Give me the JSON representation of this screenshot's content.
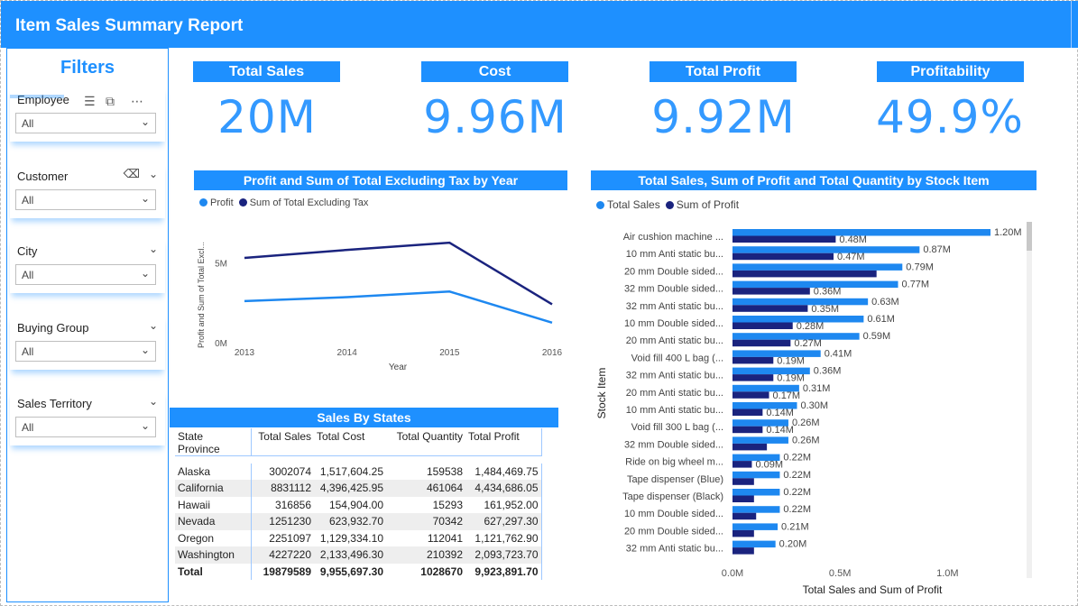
{
  "header": {
    "title": "Item Sales Summary Report"
  },
  "filters": {
    "title": "Filters",
    "slicers": [
      {
        "label": "Employee",
        "value": "All"
      },
      {
        "label": "Customer",
        "value": "All"
      },
      {
        "label": "City",
        "value": "All"
      },
      {
        "label": "Buying Group",
        "value": "All"
      },
      {
        "label": "Sales Territory",
        "value": "All"
      }
    ]
  },
  "kpis": [
    {
      "label": "Total Sales",
      "value": "20M"
    },
    {
      "label": "Cost",
      "value": "9.96M"
    },
    {
      "label": "Total Profit",
      "value": "9.92M"
    },
    {
      "label": "Profitability",
      "value": "49.9%"
    }
  ],
  "colors": {
    "accent": "#1e90ff",
    "series_light": "#1e88f0",
    "series_dark": "#1a237e"
  },
  "line_chart": {
    "title": "Profit and Sum of Total Excluding Tax by Year",
    "legend": [
      "Profit",
      "Sum of Total Excluding Tax"
    ],
    "ylabel": "Profit and Sum of Total Excl...",
    "xlabel": "Year",
    "y_ticks": [
      "0M",
      "5M"
    ],
    "x_ticks": [
      "2013",
      "2014",
      "2015",
      "2016"
    ]
  },
  "bar_chart": {
    "title": "Total Sales, Sum of Profit and Total Quantity by Stock Item",
    "legend": [
      "Total Sales",
      "Sum of Profit"
    ],
    "ylabel": "Stock Item",
    "xlabel": "Total Sales and Sum of Profit",
    "x_ticks": [
      "0.0M",
      "0.5M",
      "1.0M"
    ]
  },
  "chart_data": [
    {
      "type": "line",
      "title": "Profit and Sum of Total Excluding Tax by Year",
      "xlabel": "Year",
      "ylabel": "Profit and Sum of Total Excl...",
      "x": [
        2013,
        2014,
        2015,
        2016
      ],
      "ylim": [
        0,
        7.5
      ],
      "y_unit": "M",
      "series": [
        {
          "name": "Profit",
          "color": "#1e88f0",
          "values": [
            2.6,
            2.85,
            3.2,
            1.25
          ]
        },
        {
          "name": "Sum of Total Excluding Tax",
          "color": "#1a237e",
          "values": [
            5.3,
            5.8,
            6.25,
            2.4
          ]
        }
      ],
      "grid": false,
      "legend_position": "top-left"
    },
    {
      "type": "bar",
      "orientation": "horizontal",
      "title": "Total Sales, Sum of Profit and Total Quantity by Stock Item",
      "xlabel": "Total Sales and Sum of Profit",
      "ylabel": "Stock Item",
      "xlim": [
        0,
        1.2
      ],
      "x_unit": "M",
      "categories": [
        "Air cushion machine ...",
        "10 mm Anti static bu...",
        "20 mm Double sided...",
        "32 mm Double sided...",
        "32 mm Anti static bu...",
        "10 mm Double sided...",
        "20 mm Anti static bu...",
        "Void fill 400 L bag (...",
        "32 mm Anti static bu...",
        "20 mm Anti static bu...",
        "10 mm Anti static bu...",
        "Void fill 300 L bag (...",
        "32 mm Double sided...",
        "Ride on big wheel m...",
        "Tape dispenser (Blue)",
        "Tape dispenser (Black)",
        "10 mm Double sided...",
        "20 mm Double sided...",
        "32 mm Anti static bu..."
      ],
      "series": [
        {
          "name": "Total Sales",
          "color": "#1e88f0",
          "values": [
            1.2,
            0.87,
            0.79,
            0.77,
            0.63,
            0.61,
            0.59,
            0.41,
            0.36,
            0.31,
            0.3,
            0.26,
            0.26,
            0.22,
            0.22,
            0.22,
            0.22,
            0.21,
            0.2
          ],
          "labels": [
            "1.20M",
            "0.87M",
            "0.79M",
            "0.77M",
            "0.63M",
            "0.61M",
            "0.59M",
            "0.41M",
            "0.36M",
            "0.31M",
            "0.30M",
            "0.26M",
            "0.26M",
            "0.22M",
            "0.22M",
            "0.22M",
            "0.22M",
            "0.21M",
            "0.20M"
          ]
        },
        {
          "name": "Sum of Profit",
          "color": "#1a237e",
          "values": [
            0.48,
            0.47,
            0.67,
            0.36,
            0.35,
            0.28,
            0.27,
            0.19,
            0.19,
            0.17,
            0.14,
            0.14,
            0.16,
            0.09,
            0.1,
            0.1,
            0.11,
            0.1,
            0.1
          ],
          "labels": [
            "0.48M",
            "0.47M",
            "",
            "0.36M",
            "0.35M",
            "0.28M",
            "0.27M",
            "0.19M",
            "0.19M",
            "0.17M",
            "0.14M",
            "0.14M",
            "",
            "0.09M",
            "",
            "",
            "",
            "",
            ""
          ]
        }
      ],
      "legend_position": "top-left"
    },
    {
      "type": "table",
      "title": "Sales By States",
      "columns": [
        "State Province",
        "Total Sales",
        "Total Cost",
        "Total Quantity",
        "Total Profit"
      ],
      "rows": [
        [
          "Alaska",
          "3002074",
          "1,517,604.25",
          "159538",
          "1,484,469.75"
        ],
        [
          "California",
          "8831112",
          "4,396,425.95",
          "461064",
          "4,434,686.05"
        ],
        [
          "Hawaii",
          "316856",
          "154,904.00",
          "15293",
          "161,952.00"
        ],
        [
          "Nevada",
          "1251230",
          "623,932.70",
          "70342",
          "627,297.30"
        ],
        [
          "Oregon",
          "2251097",
          "1,129,334.10",
          "112041",
          "1,121,762.90"
        ],
        [
          "Washington",
          "4227220",
          "2,133,496.30",
          "210392",
          "2,093,723.70"
        ]
      ],
      "total": [
        "Total",
        "19879589",
        "9,955,697.30",
        "1028670",
        "9,923,891.70"
      ]
    }
  ]
}
